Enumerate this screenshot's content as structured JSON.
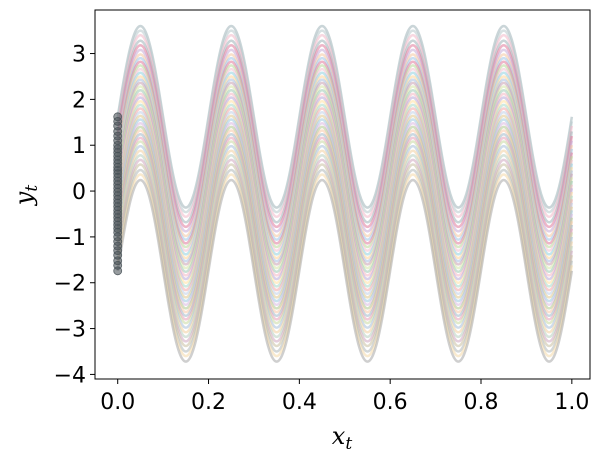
{
  "chart_data": {
    "type": "line",
    "title": "",
    "xlabel": "x",
    "xlabel_sub": "t",
    "ylabel": "y",
    "ylabel_sub": "t",
    "xlim": [
      -0.05,
      1.04
    ],
    "ylim": [
      -4.1,
      3.95
    ],
    "x_ticks": [
      0.0,
      0.2,
      0.4,
      0.6,
      0.8,
      1.0
    ],
    "x_tick_labels": [
      "0.0",
      "0.2",
      "0.4",
      "0.6",
      "0.8",
      "1.0"
    ],
    "y_ticks": [
      -4,
      -3,
      -2,
      -1,
      0,
      1,
      2,
      3
    ],
    "y_tick_labels": [
      "−4",
      "−3",
      "−2",
      "−1",
      "0",
      "1",
      "2",
      "3"
    ],
    "grid": false,
    "legend": "none",
    "wave": {
      "amplitude": 1.98,
      "period": 0.2,
      "phase_peak_x": 0.05,
      "x_end": 1.0
    },
    "series_offsets": [
      1.62,
      1.52,
      1.42,
      1.3,
      1.2,
      1.1,
      1.0,
      0.92,
      0.84,
      0.76,
      0.68,
      0.6,
      0.52,
      0.45,
      0.38,
      0.3,
      0.22,
      0.14,
      0.06,
      -0.02,
      -0.1,
      -0.18,
      -0.26,
      -0.34,
      -0.42,
      -0.5,
      -0.58,
      -0.66,
      -0.74,
      -0.82,
      -0.9,
      -1.0,
      -1.1,
      -1.2,
      -1.3,
      -1.4,
      -1.52,
      -1.62,
      -1.74
    ],
    "series_colors": [
      "#9fb3b8",
      "#b8c8cc",
      "#f2b8c8",
      "#9fb3b8",
      "#e07a9a",
      "#c7a9d6",
      "#f4c7a0",
      "#9fc5e8",
      "#e07a9a",
      "#b9d99a",
      "#f2c0cf",
      "#8fd1e0",
      "#ffd699",
      "#a9bfe0",
      "#c8a0b0",
      "#d6e5a8",
      "#9ec9b5",
      "#f4b6c2",
      "#b8a9d9",
      "#ffe0a0",
      "#a8d8c8",
      "#f2a8a8",
      "#c0d0e8",
      "#e0c890",
      "#9cc8e0",
      "#d8b8e0",
      "#b0c890",
      "#f8c8a8",
      "#a0b8c8",
      "#e8a0b8",
      "#c8d8a0",
      "#a8c0d8",
      "#f0d0a0",
      "#b8d0c0",
      "#d0a8c0",
      "#c8c0a0",
      "#b0b8b8",
      "#f4d8a8",
      "#a8a8a8"
    ],
    "marker_color": "#4a5358",
    "start_points": {
      "x": 0.0,
      "y_min": -1.74,
      "y_max": 1.62
    }
  }
}
